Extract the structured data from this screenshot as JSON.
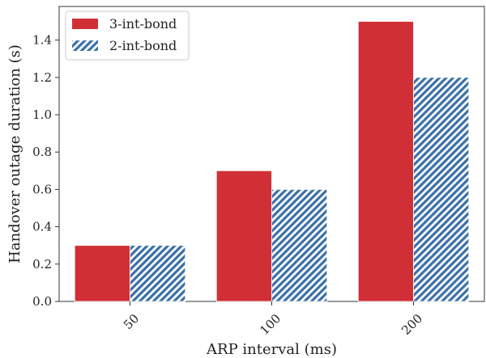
{
  "chart_data": {
    "type": "bar",
    "title": "",
    "xlabel": "ARP interval (ms)",
    "ylabel": "Handover outage duration (s)",
    "categories": [
      "50",
      "100",
      "200"
    ],
    "series": [
      {
        "name": "3-int-bond",
        "values": [
          0.3,
          0.7,
          1.5
        ],
        "color": "#d03035",
        "pattern": "solid"
      },
      {
        "name": "2-int-bond",
        "values": [
          0.3,
          0.6,
          1.2
        ],
        "color": "#3a70a8",
        "pattern": "diagonal-hatch"
      }
    ],
    "ylim": [
      0,
      1.58
    ],
    "yticks": [
      "0.0",
      "0.2",
      "0.4",
      "0.6",
      "0.8",
      "1.0",
      "1.2",
      "1.4"
    ],
    "grid": false,
    "legend_position": "top-left"
  }
}
